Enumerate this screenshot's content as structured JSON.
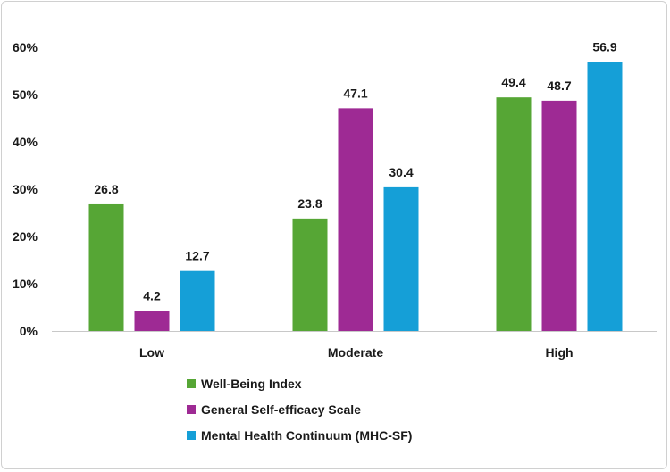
{
  "chart_data": {
    "type": "bar",
    "title": "",
    "xlabel": "",
    "ylabel": "",
    "categories": [
      "Low",
      "Moderate",
      "High"
    ],
    "series": [
      {
        "name": "Well-Being Index",
        "values": [
          26.8,
          23.8,
          49.4
        ],
        "color": "#56a635"
      },
      {
        "name": "General Self-efficacy Scale",
        "values": [
          4.2,
          47.1,
          48.7
        ],
        "color": "#9e2a94"
      },
      {
        "name": "Mental Health Continuum (MHC-SF)",
        "values": [
          12.7,
          30.4,
          56.9
        ],
        "color": "#159fd7"
      }
    ],
    "ylim": [
      0,
      60
    ],
    "yticks": [
      0,
      10,
      20,
      30,
      40,
      50,
      60
    ],
    "ytick_labels": [
      "0%",
      "10%",
      "20%",
      "30%",
      "40%",
      "50%",
      "60%"
    ],
    "data_labels": [
      [
        "26.8",
        "23.8",
        "49.4"
      ],
      [
        "4.2",
        "47.1",
        "48.7"
      ],
      [
        "12.7",
        "30.4",
        "56.9"
      ]
    ],
    "grid": false,
    "legend_position": "bottom-center"
  }
}
